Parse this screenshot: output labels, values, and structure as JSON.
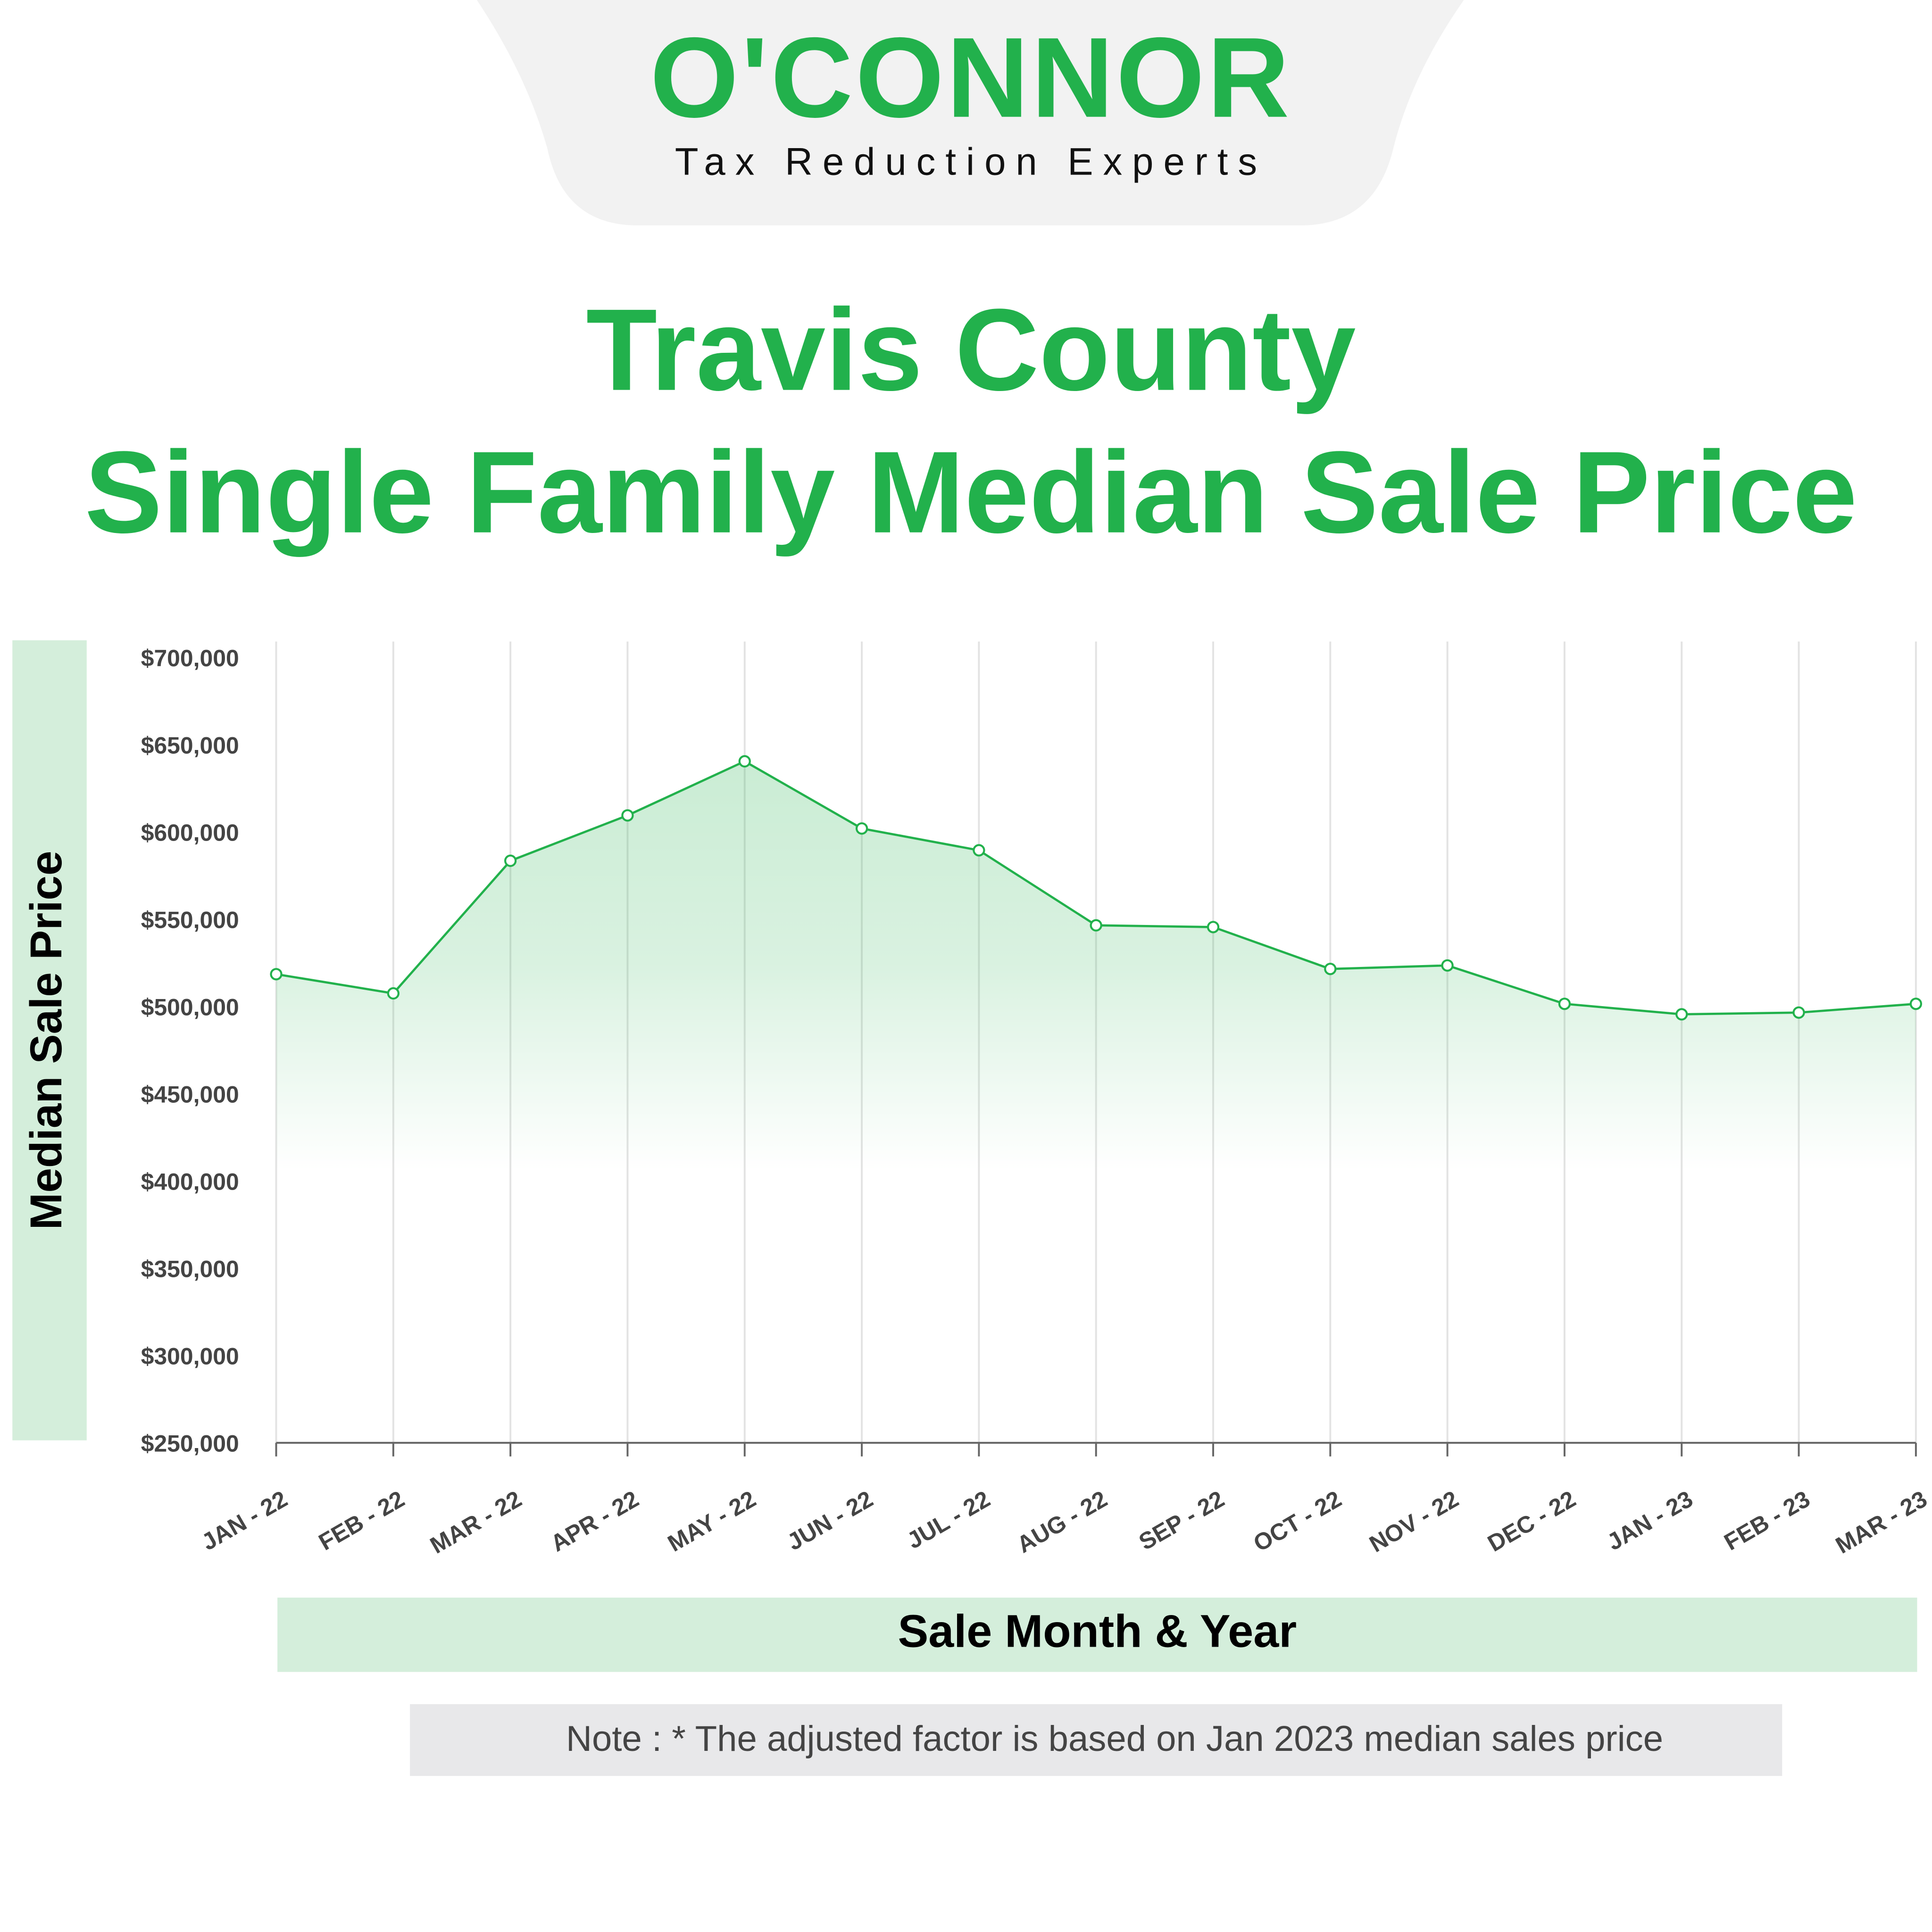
{
  "logo": {
    "name": "O'CONNOR",
    "tagline": "Tax Reduction Experts"
  },
  "chart_data": {
    "type": "area",
    "title": [
      "Travis County",
      "Single Family Median Sale Price"
    ],
    "y_label": "Median Sale Price",
    "x_label": "Sale Month & Year",
    "note": "Note : * The adjusted factor is based on Jan 2023 median sales price",
    "categories": [
      "JAN - 22",
      "FEB - 22",
      "MAR - 22",
      "APR - 22",
      "MAY - 22",
      "JUN - 22",
      "JUL - 22",
      "AUG - 22",
      "SEP - 22",
      "OCT - 22",
      "NOV - 22",
      "DEC - 22",
      "JAN - 23",
      "FEB - 23",
      "MAR - 23"
    ],
    "values": [
      520000,
      509000,
      585000,
      611000,
      642000,
      603500,
      591000,
      548000,
      547000,
      523000,
      525000,
      503000,
      497000,
      498000,
      503000
    ],
    "color": "#22b14c",
    "ylim": [
      250000,
      700000
    ],
    "yticks": [
      {
        "value": 250000,
        "label": "$250,000"
      },
      {
        "value": 300000,
        "label": "$300,000"
      },
      {
        "value": 350000,
        "label": "$350,000"
      },
      {
        "value": 400000,
        "label": "$400,000"
      },
      {
        "value": 450000,
        "label": "$450,000"
      },
      {
        "value": 500000,
        "label": "$500,000"
      },
      {
        "value": 550000,
        "label": "$550,000"
      },
      {
        "value": 600000,
        "label": "$600,000"
      },
      {
        "value": 650000,
        "label": "$650,000"
      },
      {
        "value": 700000,
        "label": "$700,000"
      }
    ],
    "xgrid": true
  }
}
